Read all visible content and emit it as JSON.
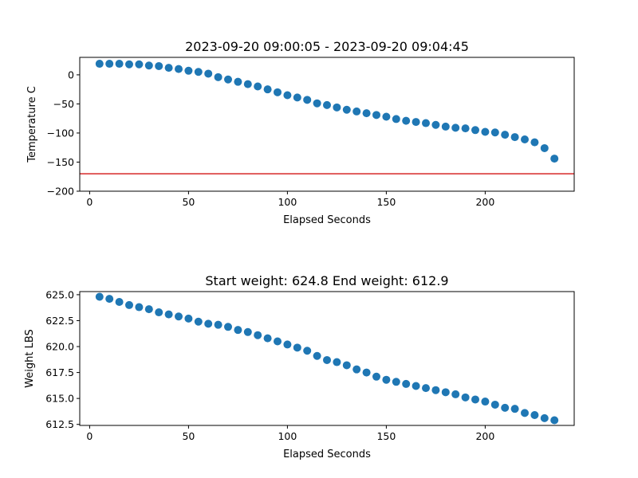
{
  "chart_data": [
    {
      "type": "scatter",
      "title": "2023-09-20 09:00:05 - 2023-09-20 09:04:45",
      "xlabel": "Elapsed Seconds",
      "ylabel": "Temperature C",
      "xlim": [
        -5,
        245
      ],
      "ylim": [
        -200,
        30
      ],
      "xticks": [
        0,
        50,
        100,
        150,
        200
      ],
      "yticks": [
        -200,
        -150,
        -100,
        -50,
        0
      ],
      "ytick_labels": [
        "−200",
        "−150",
        "−100",
        "−50",
        "0"
      ],
      "grid": false,
      "hline": {
        "y": -170,
        "color": "#d62728"
      },
      "marker_color": "#1f77b4",
      "x": [
        5,
        10,
        15,
        20,
        25,
        30,
        35,
        40,
        45,
        50,
        55,
        60,
        65,
        70,
        75,
        80,
        85,
        90,
        95,
        100,
        105,
        110,
        115,
        120,
        125,
        130,
        135,
        140,
        145,
        150,
        155,
        160,
        165,
        170,
        175,
        180,
        185,
        190,
        195,
        200,
        205,
        210,
        215,
        220,
        225,
        230,
        235
      ],
      "y": [
        19,
        19,
        19,
        18,
        18,
        16,
        15,
        12,
        10,
        7,
        5,
        2,
        -4,
        -8,
        -12,
        -16,
        -20,
        -25,
        -30,
        -35,
        -39,
        -43,
        -49,
        -52,
        -56,
        -60,
        -63,
        -66,
        -69,
        -72,
        -76,
        -79,
        -81,
        -83,
        -86,
        -89,
        -91,
        -92,
        -95,
        -98,
        -99,
        -103,
        -107,
        -111,
        -116,
        -126,
        -144
      ]
    },
    {
      "type": "scatter",
      "title": "Start weight: 624.8 End weight: 612.9",
      "xlabel": "Elapsed Seconds",
      "ylabel": "Weight LBS",
      "xlim": [
        -5,
        245
      ],
      "ylim": [
        612.4,
        625.3
      ],
      "xticks": [
        0,
        50,
        100,
        150,
        200
      ],
      "yticks": [
        612.5,
        615.0,
        617.5,
        620.0,
        622.5,
        625.0
      ],
      "ytick_labels": [
        "612.5",
        "615.0",
        "617.5",
        "620.0",
        "622.5",
        "625.0"
      ],
      "grid": false,
      "marker_color": "#1f77b4",
      "x": [
        5,
        10,
        15,
        20,
        25,
        30,
        35,
        40,
        45,
        50,
        55,
        60,
        65,
        70,
        75,
        80,
        85,
        90,
        95,
        100,
        105,
        110,
        115,
        120,
        125,
        130,
        135,
        140,
        145,
        150,
        155,
        160,
        165,
        170,
        175,
        180,
        185,
        190,
        195,
        200,
        205,
        210,
        215,
        220,
        225,
        230,
        235
      ],
      "y": [
        624.8,
        624.6,
        624.3,
        624.0,
        623.8,
        623.6,
        623.3,
        623.1,
        622.9,
        622.7,
        622.4,
        622.2,
        622.1,
        621.9,
        621.6,
        621.4,
        621.1,
        620.8,
        620.5,
        620.2,
        619.9,
        619.6,
        619.1,
        618.7,
        618.5,
        618.2,
        617.8,
        617.5,
        617.1,
        616.8,
        616.6,
        616.4,
        616.2,
        616.0,
        615.8,
        615.6,
        615.4,
        615.1,
        614.9,
        614.7,
        614.4,
        614.1,
        614.0,
        613.6,
        613.4,
        613.1,
        612.9
      ]
    }
  ]
}
